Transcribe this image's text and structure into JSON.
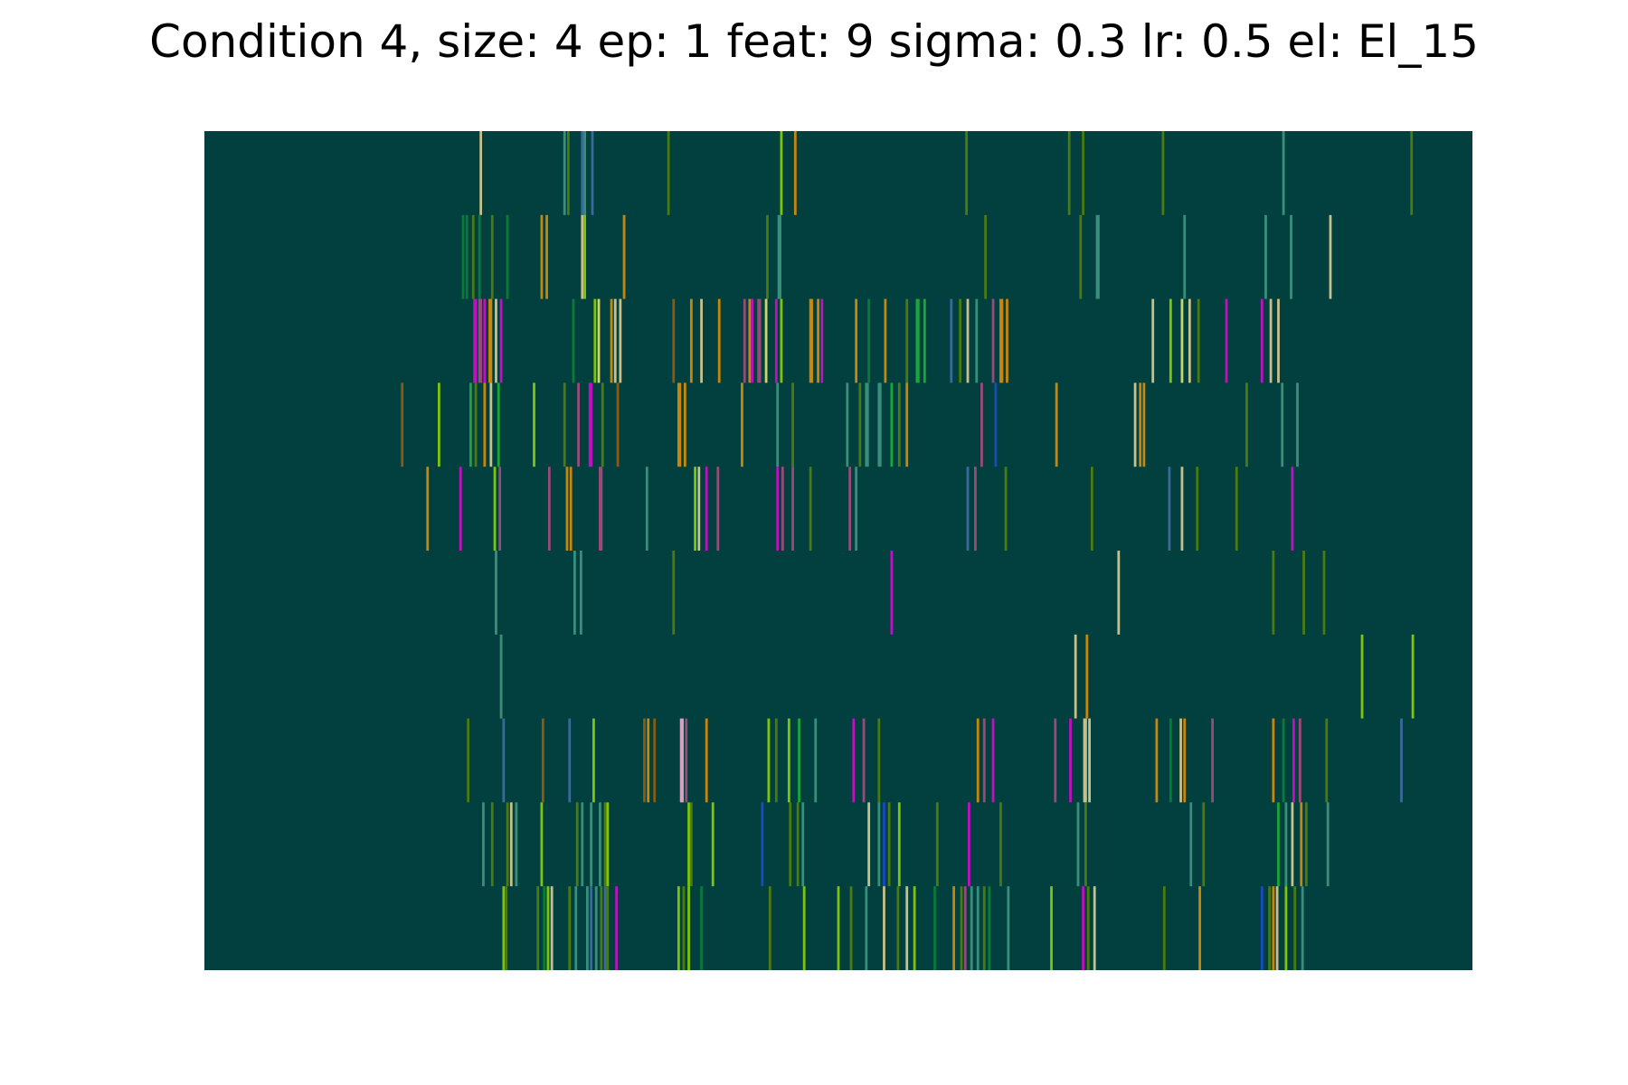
{
  "chart_data": {
    "type": "heatmap",
    "title": "Condition 4, size: 4 ep: 1 feat: 9 sigma: 0.3 lr: 0.5 el: El_15",
    "xlabel": "",
    "ylabel": "",
    "axes_visible": false,
    "grid": false,
    "legend": "none",
    "background_color": "#023f3f",
    "x_range": [
      0,
      1000
    ],
    "rows": 10,
    "palette": {
      "teal": "#3a8f7a",
      "dkgreen": "#0a7a3a",
      "green": "#1aa63a",
      "olive": "#4a7a10",
      "lime": "#7fc40a",
      "yellow": "#c8d66a",
      "khaki": "#c8c08a",
      "orange": "#c8860a",
      "brown": "#8a5a10",
      "magenta": "#c010c0",
      "mauve": "#9a4a7a",
      "pink": "#d9a0c0",
      "blue": "#1a4ac0",
      "steel": "#3a6a9a"
    },
    "cells": [
      [
        [
          217,
          2,
          "khaki"
        ],
        [
          283,
          2,
          "teal"
        ],
        [
          286,
          2,
          "olive"
        ],
        [
          297,
          2,
          "steel"
        ],
        [
          299,
          2,
          "teal"
        ],
        [
          305,
          2,
          "steel"
        ],
        [
          365,
          2,
          "olive"
        ],
        [
          454,
          2,
          "lime"
        ],
        [
          465,
          2,
          "orange"
        ],
        [
          600,
          2,
          "olive"
        ],
        [
          681,
          2,
          "olive"
        ],
        [
          692,
          2,
          "olive"
        ],
        [
          755,
          2,
          "olive"
        ],
        [
          850,
          2,
          "teal"
        ],
        [
          951,
          2,
          "olive"
        ]
      ],
      [
        [
          203,
          2,
          "dkgreen"
        ],
        [
          206,
          2,
          "dkgreen"
        ],
        [
          211,
          2,
          "olive"
        ],
        [
          216,
          2,
          "dkgreen"
        ],
        [
          226,
          2,
          "olive"
        ],
        [
          238,
          2,
          "dkgreen"
        ],
        [
          265,
          2,
          "orange"
        ],
        [
          269,
          2,
          "orange"
        ],
        [
          297,
          2,
          "khaki"
        ],
        [
          299,
          2,
          "lime"
        ],
        [
          330,
          2,
          "orange"
        ],
        [
          443,
          2,
          "olive"
        ],
        [
          452,
          3,
          "teal"
        ],
        [
          615,
          2,
          "olive"
        ],
        [
          690,
          2,
          "olive"
        ],
        [
          703,
          3,
          "teal"
        ],
        [
          772,
          2,
          "teal"
        ],
        [
          836,
          2,
          "teal"
        ],
        [
          856,
          2,
          "teal"
        ],
        [
          887,
          2,
          "khaki"
        ]
      ],
      [
        [
          212,
          3,
          "magenta"
        ],
        [
          216,
          3,
          "mauve"
        ],
        [
          220,
          2,
          "magenta"
        ],
        [
          224,
          3,
          "orange"
        ],
        [
          229,
          2,
          "khaki"
        ],
        [
          233,
          2,
          "magenta"
        ],
        [
          290,
          2,
          "dkgreen"
        ],
        [
          307,
          2,
          "lime"
        ],
        [
          310,
          2,
          "yellow"
        ],
        [
          320,
          2,
          "orange"
        ],
        [
          323,
          2,
          "khaki"
        ],
        [
          327,
          2,
          "khaki"
        ],
        [
          369,
          2,
          "brown"
        ],
        [
          383,
          2,
          "orange"
        ],
        [
          391,
          2,
          "khaki"
        ],
        [
          405,
          2,
          "orange"
        ],
        [
          425,
          2,
          "mauve"
        ],
        [
          429,
          2,
          "orange"
        ],
        [
          431,
          2,
          "magenta"
        ],
        [
          436,
          3,
          "mauve"
        ],
        [
          442,
          2,
          "yellow"
        ],
        [
          450,
          2,
          "magenta"
        ],
        [
          454,
          2,
          "lime"
        ],
        [
          477,
          3,
          "orange"
        ],
        [
          483,
          2,
          "orange"
        ],
        [
          486,
          2,
          "magenta"
        ],
        [
          513,
          2,
          "orange"
        ],
        [
          523,
          2,
          "dkgreen"
        ],
        [
          536,
          2,
          "orange"
        ],
        [
          553,
          2,
          "olive"
        ],
        [
          561,
          3,
          "green"
        ],
        [
          567,
          2,
          "green"
        ],
        [
          588,
          2,
          "steel"
        ],
        [
          595,
          2,
          "olive"
        ],
        [
          601,
          2,
          "khaki"
        ],
        [
          608,
          2,
          "teal"
        ],
        [
          621,
          2,
          "mauve"
        ],
        [
          627,
          3,
          "orange"
        ],
        [
          632,
          2,
          "orange"
        ],
        [
          747,
          2,
          "khaki"
        ],
        [
          761,
          2,
          "lime"
        ],
        [
          770,
          2,
          "yellow"
        ],
        [
          776,
          2,
          "khaki"
        ],
        [
          783,
          2,
          "olive"
        ],
        [
          805,
          2,
          "magenta"
        ],
        [
          833,
          2,
          "magenta"
        ],
        [
          840,
          2,
          "khaki"
        ],
        [
          846,
          2,
          "khaki"
        ]
      ],
      [
        [
          155,
          2,
          "brown"
        ],
        [
          184,
          2,
          "lime"
        ],
        [
          209,
          2,
          "green"
        ],
        [
          213,
          2,
          "olive"
        ],
        [
          220,
          2,
          "orange"
        ],
        [
          225,
          2,
          "khaki"
        ],
        [
          231,
          2,
          "green"
        ],
        [
          259,
          2,
          "lime"
        ],
        [
          283,
          2,
          "olive"
        ],
        [
          294,
          2,
          "mauve"
        ],
        [
          303,
          3,
          "magenta"
        ],
        [
          313,
          2,
          "olive"
        ],
        [
          325,
          2,
          "brown"
        ],
        [
          373,
          3,
          "orange"
        ],
        [
          378,
          2,
          "orange"
        ],
        [
          423,
          2,
          "orange"
        ],
        [
          451,
          2,
          "teal"
        ],
        [
          463,
          2,
          "olive"
        ],
        [
          506,
          2,
          "teal"
        ],
        [
          516,
          2,
          "olive"
        ],
        [
          521,
          3,
          "teal"
        ],
        [
          531,
          3,
          "teal"
        ],
        [
          541,
          2,
          "green"
        ],
        [
          547,
          2,
          "olive"
        ],
        [
          553,
          2,
          "orange"
        ],
        [
          612,
          2,
          "mauve"
        ],
        [
          623,
          2,
          "blue"
        ],
        [
          671,
          2,
          "orange"
        ],
        [
          733,
          2,
          "khaki"
        ],
        [
          737,
          2,
          "orange"
        ],
        [
          740,
          2,
          "orange"
        ],
        [
          821,
          2,
          "olive"
        ],
        [
          849,
          2,
          "teal"
        ],
        [
          861,
          2,
          "teal"
        ]
      ],
      [
        [
          175,
          2,
          "orange"
        ],
        [
          201,
          2,
          "magenta"
        ],
        [
          228,
          2,
          "lime"
        ],
        [
          232,
          2,
          "mauve"
        ],
        [
          271,
          2,
          "mauve"
        ],
        [
          285,
          2,
          "orange"
        ],
        [
          288,
          2,
          "orange"
        ],
        [
          311,
          3,
          "mauve"
        ],
        [
          348,
          2,
          "teal"
        ],
        [
          386,
          2,
          "lime"
        ],
        [
          389,
          2,
          "khaki"
        ],
        [
          395,
          2,
          "magenta"
        ],
        [
          404,
          2,
          "mauve"
        ],
        [
          451,
          2,
          "magenta"
        ],
        [
          455,
          2,
          "mauve"
        ],
        [
          463,
          2,
          "mauve"
        ],
        [
          477,
          2,
          "olive"
        ],
        [
          508,
          2,
          "mauve"
        ],
        [
          513,
          2,
          "teal"
        ],
        [
          601,
          2,
          "steel"
        ],
        [
          607,
          2,
          "mauve"
        ],
        [
          631,
          2,
          "olive"
        ],
        [
          699,
          2,
          "olive"
        ],
        [
          760,
          2,
          "steel"
        ],
        [
          770,
          2,
          "khaki"
        ],
        [
          782,
          2,
          "olive"
        ],
        [
          813,
          2,
          "olive"
        ],
        [
          857,
          2,
          "magenta"
        ]
      ],
      [
        [
          229,
          2,
          "teal"
        ],
        [
          291,
          2,
          "teal"
        ],
        [
          296,
          2,
          "teal"
        ],
        [
          369,
          2,
          "olive"
        ],
        [
          541,
          2,
          "magenta"
        ],
        [
          720,
          2,
          "khaki"
        ],
        [
          842,
          2,
          "olive"
        ],
        [
          866,
          2,
          "olive"
        ],
        [
          882,
          2,
          "olive"
        ]
      ],
      [
        [
          233,
          2,
          "teal"
        ],
        [
          686,
          2,
          "khaki"
        ],
        [
          695,
          2,
          "orange"
        ],
        [
          912,
          2,
          "lime"
        ],
        [
          952,
          2,
          "lime"
        ]
      ],
      [
        [
          207,
          2,
          "olive"
        ],
        [
          235,
          2,
          "steel"
        ],
        [
          266,
          2,
          "brown"
        ],
        [
          287,
          2,
          "steel"
        ],
        [
          306,
          2,
          "lime"
        ],
        [
          346,
          2,
          "brown"
        ],
        [
          349,
          2,
          "orange"
        ],
        [
          354,
          2,
          "brown"
        ],
        [
          375,
          3,
          "pink"
        ],
        [
          379,
          2,
          "mauve"
        ],
        [
          395,
          2,
          "orange"
        ],
        [
          444,
          2,
          "lime"
        ],
        [
          450,
          2,
          "olive"
        ],
        [
          460,
          2,
          "lime"
        ],
        [
          468,
          2,
          "green"
        ],
        [
          481,
          2,
          "teal"
        ],
        [
          511,
          2,
          "magenta"
        ],
        [
          519,
          2,
          "mauve"
        ],
        [
          531,
          2,
          "olive"
        ],
        [
          609,
          2,
          "orange"
        ],
        [
          614,
          2,
          "mauve"
        ],
        [
          621,
          2,
          "magenta"
        ],
        [
          670,
          2,
          "mauve"
        ],
        [
          682,
          2,
          "magenta"
        ],
        [
          693,
          3,
          "khaki"
        ],
        [
          697,
          2,
          "khaki"
        ],
        [
          750,
          2,
          "orange"
        ],
        [
          761,
          2,
          "dkgreen"
        ],
        [
          769,
          2,
          "khaki"
        ],
        [
          772,
          2,
          "orange"
        ],
        [
          794,
          2,
          "mauve"
        ],
        [
          842,
          2,
          "orange"
        ],
        [
          850,
          2,
          "dkgreen"
        ],
        [
          858,
          2,
          "magenta"
        ],
        [
          863,
          2,
          "mauve"
        ],
        [
          884,
          2,
          "olive"
        ],
        [
          943,
          2,
          "steel"
        ]
      ],
      [
        [
          219,
          2,
          "teal"
        ],
        [
          226,
          2,
          "olive"
        ],
        [
          238,
          2,
          "olive"
        ],
        [
          241,
          2,
          "khaki"
        ],
        [
          245,
          2,
          "teal"
        ],
        [
          265,
          2,
          "lime"
        ],
        [
          293,
          2,
          "olive"
        ],
        [
          297,
          2,
          "teal"
        ],
        [
          304,
          2,
          "teal"
        ],
        [
          311,
          2,
          "teal"
        ],
        [
          315,
          2,
          "olive"
        ],
        [
          317,
          2,
          "lime"
        ],
        [
          381,
          2,
          "lime"
        ],
        [
          383,
          2,
          "olive"
        ],
        [
          400,
          2,
          "lime"
        ],
        [
          439,
          2,
          "blue"
        ],
        [
          461,
          2,
          "olive"
        ],
        [
          467,
          2,
          "olive"
        ],
        [
          471,
          2,
          "teal"
        ],
        [
          523,
          2,
          "khaki"
        ],
        [
          531,
          2,
          "teal"
        ],
        [
          535,
          2,
          "blue"
        ],
        [
          539,
          2,
          "olive"
        ],
        [
          547,
          2,
          "lime"
        ],
        [
          577,
          2,
          "olive"
        ],
        [
          602,
          2,
          "magenta"
        ],
        [
          627,
          2,
          "olive"
        ],
        [
          688,
          2,
          "teal"
        ],
        [
          694,
          2,
          "olive"
        ],
        [
          777,
          2,
          "teal"
        ],
        [
          787,
          2,
          "olive"
        ],
        [
          846,
          2,
          "green"
        ],
        [
          852,
          2,
          "teal"
        ],
        [
          857,
          2,
          "khaki"
        ],
        [
          864,
          2,
          "orange"
        ],
        [
          868,
          2,
          "olive"
        ],
        [
          885,
          2,
          "teal"
        ]
      ],
      [
        [
          235,
          2,
          "lime"
        ],
        [
          237,
          2,
          "olive"
        ],
        [
          262,
          2,
          "olive"
        ],
        [
          267,
          2,
          "dkgreen"
        ],
        [
          270,
          2,
          "lime"
        ],
        [
          273,
          2,
          "khaki"
        ],
        [
          287,
          2,
          "olive"
        ],
        [
          292,
          2,
          "teal"
        ],
        [
          301,
          2,
          "teal"
        ],
        [
          304,
          2,
          "steel"
        ],
        [
          308,
          2,
          "teal"
        ],
        [
          312,
          2,
          "olive"
        ],
        [
          315,
          2,
          "steel"
        ],
        [
          317,
          2,
          "olive"
        ],
        [
          324,
          2,
          "magenta"
        ],
        [
          373,
          2,
          "lime"
        ],
        [
          377,
          2,
          "olive"
        ],
        [
          381,
          2,
          "lime"
        ],
        [
          391,
          2,
          "dkgreen"
        ],
        [
          445,
          2,
          "olive"
        ],
        [
          472,
          2,
          "lime"
        ],
        [
          499,
          2,
          "lime"
        ],
        [
          509,
          2,
          "olive"
        ],
        [
          521,
          2,
          "teal"
        ],
        [
          535,
          2,
          "khaki"
        ],
        [
          546,
          2,
          "olive"
        ],
        [
          553,
          2,
          "khaki"
        ],
        [
          559,
          2,
          "lime"
        ],
        [
          575,
          2,
          "dkgreen"
        ],
        [
          590,
          2,
          "orange"
        ],
        [
          596,
          2,
          "olive"
        ],
        [
          599,
          2,
          "mauve"
        ],
        [
          604,
          2,
          "teal"
        ],
        [
          609,
          2,
          "teal"
        ],
        [
          614,
          2,
          "olive"
        ],
        [
          618,
          2,
          "dkgreen"
        ],
        [
          633,
          2,
          "teal"
        ],
        [
          667,
          2,
          "lime"
        ],
        [
          692,
          2,
          "magenta"
        ],
        [
          696,
          2,
          "olive"
        ],
        [
          701,
          2,
          "khaki"
        ],
        [
          756,
          2,
          "olive"
        ],
        [
          784,
          2,
          "orange"
        ],
        [
          833,
          2,
          "blue"
        ],
        [
          839,
          2,
          "olive"
        ],
        [
          842,
          2,
          "orange"
        ],
        [
          845,
          2,
          "khaki"
        ],
        [
          852,
          2,
          "lime"
        ],
        [
          859,
          2,
          "olive"
        ],
        [
          865,
          2,
          "teal"
        ]
      ]
    ]
  }
}
